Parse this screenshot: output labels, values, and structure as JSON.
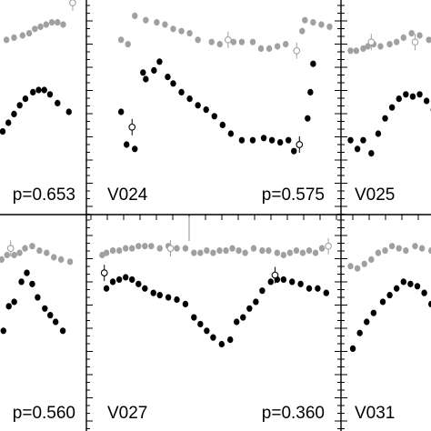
{
  "chart_data": {
    "type": "scatter",
    "title": "",
    "xlabel": "",
    "ylabel": "",
    "marker_colors": {
      "upper": "#a0a0a0",
      "lower": "#000000"
    },
    "panels": [
      {
        "star": "",
        "period": "p=0.653",
        "upper": [
          [
            0.02,
            0.85
          ],
          [
            0.08,
            0.83
          ],
          [
            0.28,
            0.88
          ],
          [
            0.36,
            0.89
          ],
          [
            0.45,
            0.9
          ],
          [
            0.52,
            0.91
          ],
          [
            0.58,
            0.93
          ],
          [
            0.64,
            0.94
          ],
          [
            0.7,
            0.95
          ],
          [
            0.76,
            0.96
          ],
          [
            0.82,
            0.96
          ],
          [
            0.88,
            0.95
          ]
        ],
        "upper_open": [
          [
            0.98,
            1.05
          ]
        ],
        "lower": [
          [
            0.02,
            0.4
          ],
          [
            0.08,
            0.4
          ],
          [
            0.24,
            0.46
          ],
          [
            0.3,
            0.5
          ],
          [
            0.36,
            0.54
          ],
          [
            0.42,
            0.58
          ],
          [
            0.48,
            0.61
          ],
          [
            0.56,
            0.64
          ],
          [
            0.62,
            0.65
          ],
          [
            0.68,
            0.65
          ],
          [
            0.74,
            0.63
          ],
          [
            0.82,
            0.59
          ],
          [
            0.94,
            0.55
          ]
        ],
        "lower_open": []
      },
      {
        "star": "V024",
        "period": "p=0.575",
        "upper": [
          [
            0.2,
            0.88
          ],
          [
            0.25,
            0.86
          ],
          [
            0.3,
            0.99
          ],
          [
            0.38,
            0.97
          ],
          [
            0.46,
            0.96
          ],
          [
            0.52,
            0.95
          ],
          [
            0.58,
            0.93
          ],
          [
            0.64,
            0.92
          ],
          [
            0.7,
            0.91
          ],
          [
            0.76,
            0.88
          ],
          [
            0.86,
            0.87
          ],
          [
            0.92,
            0.86
          ],
          [
            1.02,
            0.87
          ],
          [
            1.08,
            0.87
          ],
          [
            1.16,
            0.87
          ],
          [
            1.22,
            0.84
          ],
          [
            1.28,
            0.84
          ],
          [
            1.34,
            0.85
          ],
          [
            1.4,
            0.86
          ],
          [
            1.52,
            0.92
          ],
          [
            1.54,
            0.97
          ],
          [
            1.6,
            0.96
          ],
          [
            1.66,
            0.95
          ],
          [
            1.72,
            0.94
          ]
        ],
        "upper_open": [
          [
            0.98,
            0.88
          ],
          [
            1.48,
            0.83
          ]
        ],
        "lower": [
          [
            0.2,
            0.55
          ],
          [
            0.24,
            0.4
          ],
          [
            0.3,
            0.38
          ],
          [
            0.36,
            0.73
          ],
          [
            0.38,
            0.7
          ],
          [
            0.44,
            0.74
          ],
          [
            0.48,
            0.78
          ],
          [
            0.54,
            0.71
          ],
          [
            0.58,
            0.68
          ],
          [
            0.64,
            0.64
          ],
          [
            0.7,
            0.61
          ],
          [
            0.76,
            0.58
          ],
          [
            0.82,
            0.56
          ],
          [
            0.88,
            0.53
          ],
          [
            0.94,
            0.49
          ],
          [
            1.0,
            0.45
          ],
          [
            1.08,
            0.42
          ],
          [
            1.16,
            0.42
          ],
          [
            1.24,
            0.43
          ],
          [
            1.3,
            0.42
          ],
          [
            1.36,
            0.41
          ],
          [
            1.42,
            0.42
          ],
          [
            1.46,
            0.37
          ],
          [
            1.56,
            0.52
          ],
          [
            1.58,
            0.64
          ],
          [
            1.6,
            0.77
          ]
        ],
        "lower_open": [
          [
            0.28,
            0.48
          ],
          [
            1.5,
            0.4
          ]
        ]
      },
      {
        "star": "V025",
        "period": "",
        "upper": [
          [
            0.02,
            0.83
          ],
          [
            0.07,
            0.83
          ],
          [
            0.13,
            0.84
          ],
          [
            0.17,
            0.85
          ],
          [
            0.22,
            0.86
          ],
          [
            0.28,
            0.85
          ],
          [
            0.36,
            0.86
          ],
          [
            0.42,
            0.87
          ],
          [
            0.48,
            0.89
          ],
          [
            0.55,
            0.91
          ],
          [
            0.62,
            0.9
          ],
          [
            0.7,
            0.88
          ],
          [
            0.78,
            0.9
          ],
          [
            0.86,
            0.92
          ]
        ],
        "upper_open": [
          [
            0.2,
            0.87
          ],
          [
            0.58,
            0.87
          ]
        ],
        "lower": [
          [
            0.02,
            0.42
          ],
          [
            0.08,
            0.38
          ],
          [
            0.13,
            0.42
          ],
          [
            0.2,
            0.36
          ],
          [
            0.26,
            0.45
          ],
          [
            0.32,
            0.52
          ],
          [
            0.38,
            0.57
          ],
          [
            0.44,
            0.61
          ],
          [
            0.5,
            0.63
          ],
          [
            0.56,
            0.62
          ],
          [
            0.62,
            0.63
          ],
          [
            0.68,
            0.6
          ],
          [
            0.74,
            0.56
          ],
          [
            0.8,
            0.6
          ],
          [
            0.86,
            0.57
          ]
        ],
        "lower_open": []
      },
      {
        "star": "",
        "period": "p=0.560",
        "upper": [
          [
            0.04,
            0.86
          ],
          [
            0.12,
            0.84
          ],
          [
            0.18,
            0.86
          ],
          [
            0.24,
            0.88
          ],
          [
            0.3,
            0.9
          ],
          [
            0.38,
            0.9
          ],
          [
            0.44,
            0.91
          ],
          [
            0.5,
            0.93
          ],
          [
            0.58,
            0.94
          ],
          [
            0.66,
            0.92
          ],
          [
            0.74,
            0.91
          ],
          [
            0.82,
            0.89
          ],
          [
            0.9,
            0.88
          ],
          [
            1.0,
            0.87
          ]
        ],
        "upper_open": [
          [
            0.34,
            0.93
          ]
        ],
        "lower": [
          [
            0.04,
            0.46
          ],
          [
            0.1,
            0.49
          ],
          [
            0.18,
            0.5
          ],
          [
            0.26,
            0.56
          ],
          [
            0.32,
            0.67
          ],
          [
            0.38,
            0.69
          ],
          [
            0.46,
            0.78
          ],
          [
            0.52,
            0.82
          ],
          [
            0.58,
            0.77
          ],
          [
            0.64,
            0.71
          ],
          [
            0.72,
            0.66
          ],
          [
            0.78,
            0.63
          ],
          [
            0.84,
            0.6
          ],
          [
            0.92,
            0.56
          ]
        ],
        "lower_open": []
      },
      {
        "star": "V027",
        "period": "p=0.360",
        "upper": [
          [
            0.08,
            0.9
          ],
          [
            0.12,
            0.91
          ],
          [
            0.18,
            0.92
          ],
          [
            0.24,
            0.92
          ],
          [
            0.3,
            0.93
          ],
          [
            0.36,
            0.93
          ],
          [
            0.42,
            0.94
          ],
          [
            0.48,
            0.94
          ],
          [
            0.54,
            0.94
          ],
          [
            0.62,
            0.93
          ],
          [
            0.7,
            0.94
          ],
          [
            0.78,
            0.93
          ],
          [
            0.86,
            0.93
          ],
          [
            0.94,
            0.91
          ],
          [
            1.0,
            0.91
          ],
          [
            1.06,
            0.92
          ],
          [
            1.12,
            0.91
          ],
          [
            1.18,
            0.92
          ],
          [
            1.24,
            0.92
          ],
          [
            1.3,
            0.93
          ],
          [
            1.36,
            0.92
          ],
          [
            1.42,
            0.91
          ],
          [
            1.5,
            0.93
          ],
          [
            1.58,
            0.92
          ],
          [
            1.64,
            0.92
          ],
          [
            1.72,
            0.91
          ],
          [
            1.78,
            0.9
          ],
          [
            1.84,
            0.91
          ],
          [
            1.9,
            0.92
          ],
          [
            1.96,
            0.91
          ],
          [
            2.02,
            0.92
          ],
          [
            2.08,
            0.91
          ],
          [
            2.14,
            0.93
          ]
        ],
        "upper_open": [
          [
            0.72,
            0.93
          ],
          [
            2.2,
            0.94
          ]
        ],
        "lower": [
          [
            0.12,
            0.75
          ],
          [
            0.18,
            0.78
          ],
          [
            0.24,
            0.79
          ],
          [
            0.3,
            0.8
          ],
          [
            0.36,
            0.79
          ],
          [
            0.42,
            0.77
          ],
          [
            0.48,
            0.75
          ],
          [
            0.56,
            0.73
          ],
          [
            0.62,
            0.72
          ],
          [
            0.7,
            0.71
          ],
          [
            0.78,
            0.7
          ],
          [
            0.86,
            0.68
          ],
          [
            0.94,
            0.62
          ],
          [
            1.0,
            0.59
          ],
          [
            1.06,
            0.56
          ],
          [
            1.12,
            0.53
          ],
          [
            1.2,
            0.5
          ],
          [
            1.28,
            0.52
          ],
          [
            1.34,
            0.6
          ],
          [
            1.4,
            0.62
          ],
          [
            1.46,
            0.66
          ],
          [
            1.52,
            0.69
          ],
          [
            1.58,
            0.74
          ],
          [
            1.66,
            0.78
          ],
          [
            1.72,
            0.79
          ],
          [
            1.78,
            0.79
          ],
          [
            1.86,
            0.78
          ],
          [
            1.94,
            0.77
          ],
          [
            2.02,
            0.75
          ],
          [
            2.1,
            0.75
          ],
          [
            2.18,
            0.73
          ]
        ],
        "lower_open": [
          [
            0.1,
            0.82
          ],
          [
            1.7,
            0.81
          ]
        ]
      },
      {
        "star": "V031",
        "period": "",
        "upper": [
          [
            0.02,
            0.85
          ],
          [
            0.08,
            0.84
          ],
          [
            0.14,
            0.86
          ],
          [
            0.2,
            0.88
          ],
          [
            0.26,
            0.91
          ],
          [
            0.32,
            0.92
          ],
          [
            0.38,
            0.94
          ],
          [
            0.44,
            0.93
          ],
          [
            0.5,
            0.92
          ],
          [
            0.58,
            0.94
          ],
          [
            0.64,
            0.93
          ],
          [
            0.72,
            0.92
          ],
          [
            0.78,
            0.92
          ],
          [
            0.86,
            0.92
          ]
        ],
        "upper_open": [],
        "lower": [
          [
            0.04,
            0.48
          ],
          [
            0.1,
            0.55
          ],
          [
            0.16,
            0.6
          ],
          [
            0.22,
            0.64
          ],
          [
            0.3,
            0.69
          ],
          [
            0.36,
            0.72
          ],
          [
            0.42,
            0.75
          ],
          [
            0.48,
            0.78
          ],
          [
            0.54,
            0.77
          ],
          [
            0.6,
            0.76
          ],
          [
            0.66,
            0.73
          ],
          [
            0.72,
            0.68
          ],
          [
            0.78,
            0.64
          ],
          [
            0.84,
            0.61
          ]
        ],
        "lower_open": []
      }
    ]
  }
}
